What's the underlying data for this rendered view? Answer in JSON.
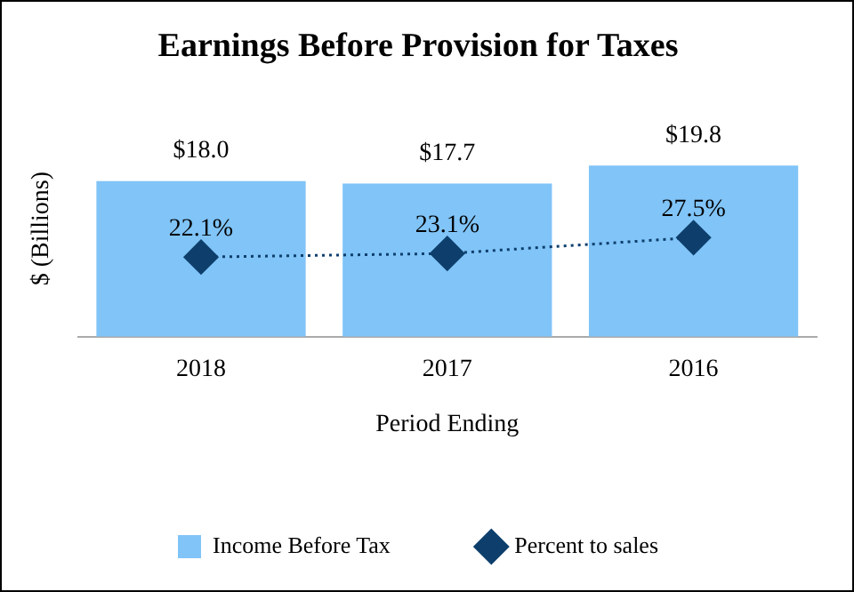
{
  "chart_data": {
    "type": "bar",
    "title": "Earnings Before Provision for Taxes",
    "xlabel": "Period Ending",
    "ylabel": "$ (Billions)",
    "categories": [
      "2018",
      "2017",
      "2016"
    ],
    "series": [
      {
        "name": "Income Before Tax",
        "color": "#80c4f8",
        "values": [
          18.0,
          17.7,
          19.8
        ],
        "value_labels": [
          "$18.0",
          "$17.7",
          "$19.8"
        ]
      },
      {
        "name": "Percent to sales",
        "type": "line",
        "axis": "y2",
        "color": "#0e3f6c",
        "values": [
          22.1,
          23.1,
          27.5
        ],
        "value_labels": [
          "22.1%",
          "23.1%",
          "27.5%"
        ],
        "marker": "diamond",
        "line_style": "dotted"
      }
    ],
    "tick_labels": "x",
    "legend": "bottom",
    "grid": false
  }
}
